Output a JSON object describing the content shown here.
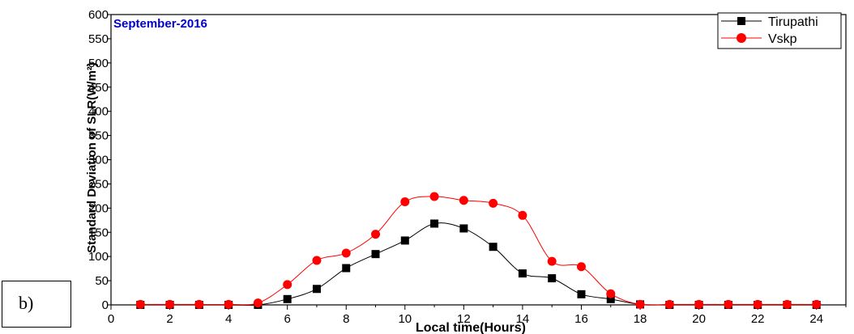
{
  "panel_label": "b)",
  "chart_data": {
    "type": "line",
    "title": "September-2016",
    "xlabel": "Local time(Hours)",
    "ylabel": "Standard Deviation of SLR(W/m²)",
    "xlim": [
      0,
      25
    ],
    "ylim": [
      0,
      600
    ],
    "xticks": [
      0,
      2,
      4,
      6,
      8,
      10,
      12,
      14,
      16,
      18,
      20,
      22,
      24
    ],
    "yticks": [
      0,
      50,
      100,
      150,
      200,
      250,
      300,
      350,
      400,
      450,
      500,
      550,
      600
    ],
    "x": [
      1,
      2,
      3,
      4,
      5,
      6,
      7,
      8,
      9,
      10,
      11,
      12,
      13,
      14,
      15,
      16,
      17,
      18,
      19,
      20,
      21,
      22,
      23,
      24
    ],
    "legend_position": "top-right",
    "grid": false,
    "series": [
      {
        "name": "Tirupathi",
        "color": "#000000",
        "marker": "square",
        "values": [
          0,
          0,
          0,
          0,
          0,
          12,
          33,
          76,
          105,
          133,
          168,
          158,
          120,
          65,
          55,
          22,
          12,
          1,
          0,
          0,
          0,
          0,
          0,
          0
        ]
      },
      {
        "name": "Vskp",
        "color": "#ff0000",
        "marker": "circle",
        "values": [
          1,
          1,
          1,
          1,
          4,
          42,
          92,
          107,
          146,
          213,
          224,
          216,
          210,
          185,
          90,
          79,
          23,
          1,
          1,
          1,
          1,
          1,
          1,
          1
        ]
      }
    ]
  }
}
